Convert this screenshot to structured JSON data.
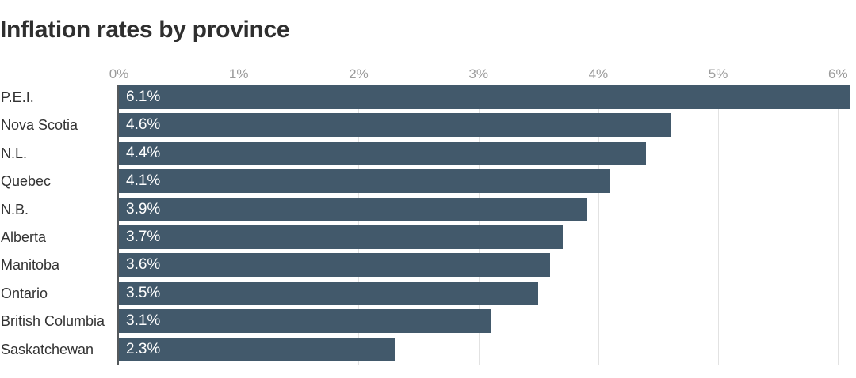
{
  "title": "Inflation rates by province",
  "chart_data": {
    "type": "bar",
    "orientation": "horizontal",
    "title": "Inflation rates by province",
    "categories": [
      "P.E.I.",
      "Nova Scotia",
      "N.L.",
      "Quebec",
      "N.B.",
      "Alberta",
      "Manitoba",
      "Ontario",
      "British Columbia",
      "Saskatchewan"
    ],
    "values": [
      6.1,
      4.6,
      4.4,
      4.1,
      3.9,
      3.7,
      3.6,
      3.5,
      3.1,
      2.3
    ],
    "value_labels": [
      "6.1%",
      "4.6%",
      "4.4%",
      "4.1%",
      "3.9%",
      "3.7%",
      "3.6%",
      "3.5%",
      "3.1%",
      "2.3%"
    ],
    "x_ticks": [
      {
        "value": 0,
        "label": "0%"
      },
      {
        "value": 1,
        "label": "1%"
      },
      {
        "value": 2,
        "label": "2%"
      },
      {
        "value": 3,
        "label": "3%"
      },
      {
        "value": 4,
        "label": "4%"
      },
      {
        "value": 5,
        "label": "5%"
      },
      {
        "value": 6,
        "label": "6%"
      }
    ],
    "xlim": [
      0,
      6.15
    ],
    "grid": true,
    "legend": false,
    "xlabel": "",
    "ylabel": "",
    "colors": {
      "bar": "#42596b",
      "value_label": "#ffffff",
      "category_label": "#333333",
      "tick_label": "#9b9b9b",
      "gridline": "#e2e2e2",
      "axis_line": "#55595c",
      "title": "#2f2f2f",
      "background": "#ffffff"
    }
  }
}
